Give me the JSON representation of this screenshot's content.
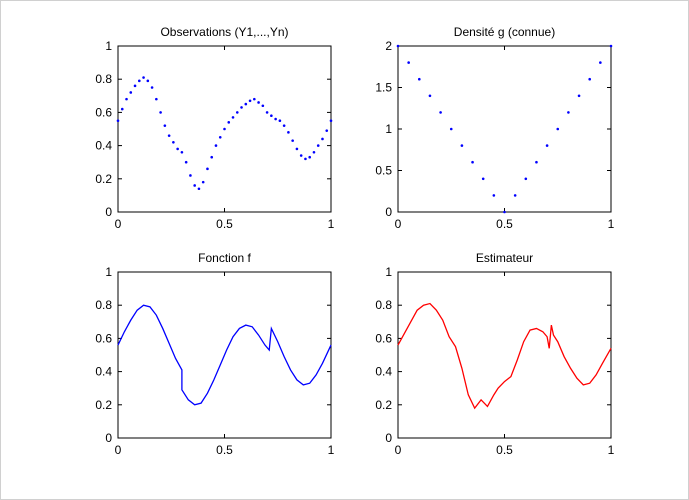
{
  "chart_data": [
    {
      "type": "scatter",
      "title": "Observations (Y1,...,Yn)",
      "xlim": [
        0,
        1
      ],
      "ylim": [
        0,
        1
      ],
      "xticks": [
        "0",
        "0.5",
        "1"
      ],
      "yticks": [
        "0",
        "0.2",
        "0.4",
        "0.6",
        "0.8",
        "1"
      ],
      "color": "#0000ff",
      "series": [
        {
          "x": [
            0.0,
            0.02,
            0.04,
            0.06,
            0.08,
            0.1,
            0.12,
            0.14,
            0.16,
            0.18,
            0.2,
            0.22,
            0.24,
            0.26,
            0.28,
            0.3,
            0.32,
            0.34,
            0.36,
            0.38,
            0.4,
            0.42,
            0.44,
            0.46,
            0.48,
            0.5,
            0.52,
            0.54,
            0.56,
            0.58,
            0.6,
            0.62,
            0.64,
            0.66,
            0.68,
            0.7,
            0.72,
            0.74,
            0.76,
            0.78,
            0.8,
            0.82,
            0.84,
            0.86,
            0.88,
            0.9,
            0.92,
            0.94,
            0.96,
            0.98,
            1.0
          ],
          "y": [
            0.55,
            0.62,
            0.68,
            0.72,
            0.76,
            0.79,
            0.81,
            0.79,
            0.75,
            0.68,
            0.6,
            0.52,
            0.46,
            0.42,
            0.38,
            0.36,
            0.3,
            0.22,
            0.16,
            0.14,
            0.18,
            0.26,
            0.33,
            0.4,
            0.45,
            0.5,
            0.54,
            0.57,
            0.6,
            0.63,
            0.65,
            0.67,
            0.68,
            0.66,
            0.64,
            0.6,
            0.58,
            0.56,
            0.55,
            0.52,
            0.48,
            0.43,
            0.38,
            0.34,
            0.32,
            0.33,
            0.36,
            0.4,
            0.44,
            0.49,
            0.55
          ]
        }
      ]
    },
    {
      "type": "scatter",
      "title": "Densité g (connue)",
      "xlim": [
        0,
        1
      ],
      "ylim": [
        0,
        2
      ],
      "xticks": [
        "0",
        "0.5",
        "1"
      ],
      "yticks": [
        "0",
        "0.5",
        "1",
        "1.5",
        "2"
      ],
      "color": "#0000ff",
      "series": [
        {
          "x": [
            0.0,
            0.05,
            0.1,
            0.15,
            0.2,
            0.25,
            0.3,
            0.35,
            0.4,
            0.45,
            0.5,
            0.55,
            0.6,
            0.65,
            0.7,
            0.75,
            0.8,
            0.85,
            0.9,
            0.95,
            1.0
          ],
          "y": [
            2.0,
            1.8,
            1.6,
            1.4,
            1.2,
            1.0,
            0.8,
            0.6,
            0.4,
            0.2,
            0.0,
            0.2,
            0.4,
            0.6,
            0.8,
            1.0,
            1.2,
            1.4,
            1.6,
            1.8,
            2.0
          ]
        }
      ]
    },
    {
      "type": "line",
      "title": "Fonction f",
      "xlim": [
        0,
        1
      ],
      "ylim": [
        0,
        1
      ],
      "xticks": [
        "0",
        "0.5",
        "1"
      ],
      "yticks": [
        "0",
        "0.2",
        "0.4",
        "0.6",
        "0.8",
        "1"
      ],
      "color": "#0000ff",
      "series": [
        {
          "x": [
            0.0,
            0.03,
            0.06,
            0.09,
            0.12,
            0.15,
            0.18,
            0.21,
            0.24,
            0.27,
            0.3,
            0.3,
            0.33,
            0.36,
            0.39,
            0.42,
            0.45,
            0.48,
            0.51,
            0.54,
            0.57,
            0.6,
            0.63,
            0.66,
            0.69,
            0.71,
            0.71,
            0.72,
            0.75,
            0.78,
            0.81,
            0.84,
            0.87,
            0.9,
            0.93,
            0.96,
            1.0
          ],
          "y": [
            0.56,
            0.64,
            0.71,
            0.77,
            0.8,
            0.79,
            0.74,
            0.66,
            0.57,
            0.48,
            0.41,
            0.29,
            0.23,
            0.2,
            0.21,
            0.27,
            0.35,
            0.44,
            0.53,
            0.61,
            0.66,
            0.68,
            0.67,
            0.62,
            0.56,
            0.53,
            0.53,
            0.66,
            0.58,
            0.49,
            0.41,
            0.35,
            0.32,
            0.33,
            0.38,
            0.45,
            0.56
          ]
        }
      ]
    },
    {
      "type": "line",
      "title": "Estimateur",
      "xlim": [
        0,
        1
      ],
      "ylim": [
        0,
        1
      ],
      "xticks": [
        "0",
        "0.5",
        "1"
      ],
      "yticks": [
        "0",
        "0.2",
        "0.4",
        "0.6",
        "0.8",
        "1"
      ],
      "color": "#ff0000",
      "series": [
        {
          "x": [
            0.0,
            0.03,
            0.06,
            0.09,
            0.12,
            0.15,
            0.18,
            0.21,
            0.24,
            0.27,
            0.3,
            0.33,
            0.36,
            0.39,
            0.42,
            0.45,
            0.47,
            0.5,
            0.53,
            0.56,
            0.59,
            0.62,
            0.65,
            0.68,
            0.7,
            0.71,
            0.72,
            0.73,
            0.75,
            0.78,
            0.81,
            0.84,
            0.87,
            0.9,
            0.93,
            0.96,
            1.0
          ],
          "y": [
            0.56,
            0.63,
            0.7,
            0.77,
            0.8,
            0.81,
            0.77,
            0.71,
            0.61,
            0.55,
            0.42,
            0.26,
            0.18,
            0.23,
            0.19,
            0.26,
            0.3,
            0.34,
            0.37,
            0.47,
            0.58,
            0.65,
            0.66,
            0.64,
            0.61,
            0.54,
            0.68,
            0.62,
            0.58,
            0.49,
            0.42,
            0.36,
            0.32,
            0.33,
            0.38,
            0.45,
            0.54
          ]
        }
      ]
    }
  ]
}
